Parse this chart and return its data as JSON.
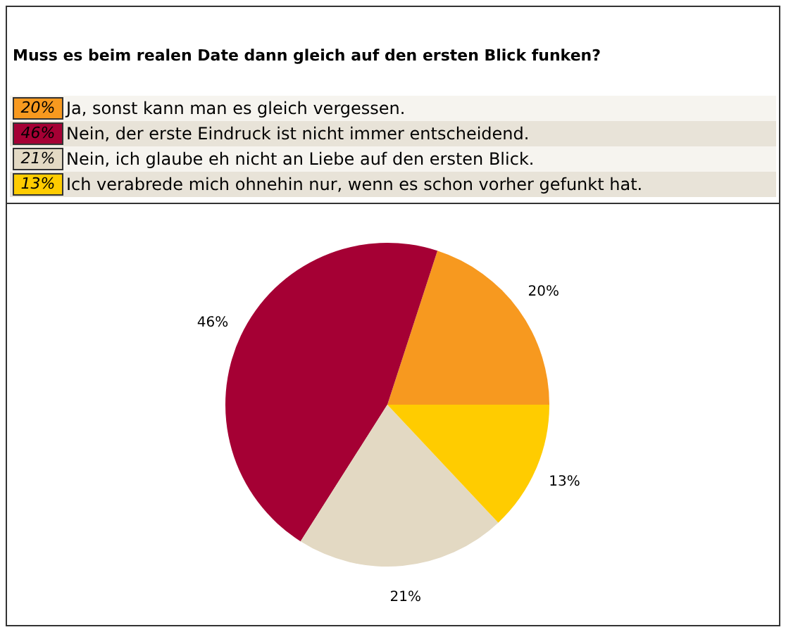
{
  "chart_data": {
    "type": "pie",
    "title": "Muss es beim realen Date dann gleich auf den ersten Blick funken?",
    "categories": [
      "Ja, sonst kann man es gleich vergessen.",
      "Nein, der erste Eindruck ist nicht immer entscheidend.",
      "Nein, ich glaube eh nicht an Liebe auf den ersten Blick.",
      "Ich verabrede mich ohnehin nur, wenn es schon vorher gefunkt hat."
    ],
    "values": [
      20,
      46,
      21,
      13
    ],
    "value_labels": [
      "20%",
      "46%",
      "21%",
      "13%"
    ],
    "colors": [
      "#f7991f",
      "#a50034",
      "#e3d9c3",
      "#ffcc00"
    ],
    "legend": "top"
  }
}
